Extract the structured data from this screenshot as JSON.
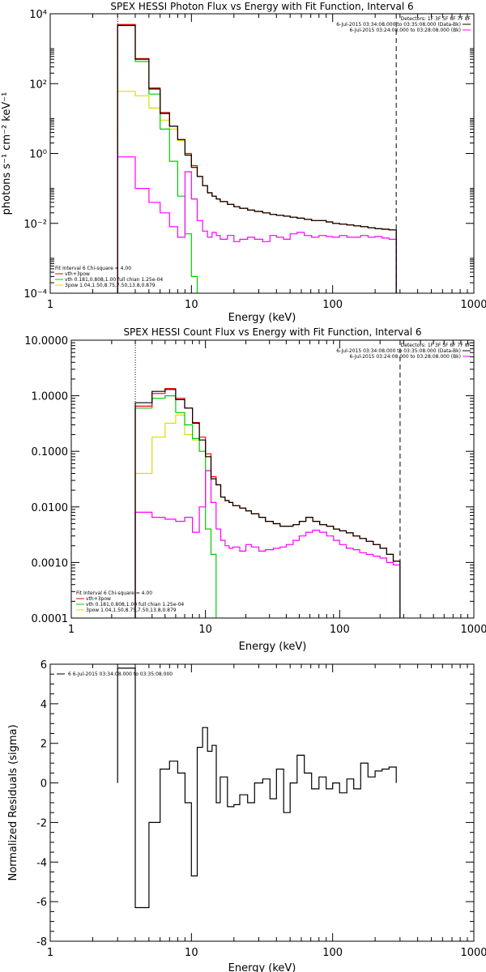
{
  "chart_data": [
    {
      "type": "line",
      "title": "SPEX HESSI Photon Flux vs Energy with Fit Function, Interval 6",
      "xlabel": "Energy (keV)",
      "ylabel": "photons s⁻¹ cm⁻² keV⁻¹",
      "xscale": "log",
      "yscale": "log",
      "xlim": [
        1,
        1000
      ],
      "ylim": [
        0.0001,
        10000
      ],
      "xticks": [
        1,
        10,
        100,
        1000
      ],
      "xtick_labels": [
        "1",
        "10",
        "100",
        "1000"
      ],
      "yticks": [
        0.0001,
        0.01,
        1,
        100,
        10000
      ],
      "ytick_labels": [
        "10⁻⁴",
        "10⁻²",
        "10⁰",
        "10²",
        "10⁴"
      ],
      "grid": false,
      "legend_top": {
        "position": "top-right",
        "header": "Detectors: 1F 3F 5F 6F 7F 8F",
        "entries": [
          {
            "text": "6-Jul-2015 03:34:08.000 to 03:35:08.000 (Data-Bk)",
            "color": "#000000"
          },
          {
            "text": "6-Jul-2015 03:24:08.000 to 03:28:08.000 (Bk)",
            "color": "#ff00ff"
          }
        ]
      },
      "legend_bottom": {
        "position": "bottom-left",
        "header": "Fit Interval 6   Chi-square = 4.00",
        "entries": [
          {
            "text": "vth+3pow",
            "color": "#ff0000"
          },
          {
            "text": "vth 0.181,0.808,1.00  full chian 1.25e-04",
            "color": "#00cc00"
          },
          {
            "text": "3pow 1.04,1.50,8.75,7.50,13.8,0.879",
            "color": "#dddd00"
          }
        ]
      },
      "energy_edges": [
        3,
        4,
        5,
        6,
        7,
        8,
        9,
        10,
        11,
        12,
        13,
        14,
        15,
        16,
        18,
        20,
        22,
        25,
        28,
        32,
        36,
        40,
        45,
        50,
        56,
        63,
        71,
        80,
        90,
        100,
        112,
        126,
        141,
        158,
        178,
        200,
        224,
        251,
        282
      ],
      "series": [
        {
          "name": "Data-Bk",
          "color": "#000000",
          "values": [
            4600,
            500,
            70,
            14,
            6,
            2.5,
            0.9,
            0.4,
            0.22,
            0.12,
            0.075,
            0.06,
            0.05,
            0.042,
            0.035,
            0.03,
            0.027,
            0.024,
            0.022,
            0.02,
            0.018,
            0.017,
            0.016,
            0.015,
            0.014,
            0.013,
            0.012,
            0.012,
            0.011,
            0.01,
            0.0095,
            0.009,
            0.0085,
            0.008,
            0.0075,
            0.007,
            0.0068,
            0.0065
          ]
        },
        {
          "name": "Bk",
          "color": "#ff00ff",
          "values": [
            0.8,
            0.1,
            0.04,
            0.02,
            0.008,
            0.004,
            0.3,
            0.05,
            0.012,
            0.006,
            0.004,
            0.0055,
            0.0045,
            0.0035,
            0.0045,
            0.003,
            0.0035,
            0.004,
            0.0035,
            0.003,
            0.0045,
            0.004,
            0.0035,
            0.005,
            0.0055,
            0.0045,
            0.004,
            0.0045,
            0.0042,
            0.004,
            0.0045,
            0.004,
            0.004,
            0.0045,
            0.004,
            0.0042,
            0.0038,
            0.0035
          ]
        },
        {
          "name": "vth+3pow",
          "color": "#ff0000",
          "values": [
            4900,
            520,
            75,
            15,
            6,
            2.5,
            1.0,
            0.45,
            0.22,
            0.12,
            0.075,
            0.06,
            0.05,
            0.042,
            0.035,
            0.03,
            0.027,
            0.024,
            0.022,
            0.02,
            0.018,
            0.017,
            0.016,
            0.015,
            0.014,
            0.013,
            0.012,
            0.012,
            0.011,
            0.01,
            0.0095,
            0.009,
            0.0085,
            0.008,
            0.0075,
            0.007,
            0.0068,
            0.0065
          ]
        },
        {
          "name": "vth",
          "color": "#00cc00",
          "values": [
            4900,
            430,
            50,
            5,
            0.6,
            0.06,
            0.005,
            0.0003,
            1e-05
          ]
        },
        {
          "name": "3pow",
          "color": "#dddd00",
          "values": [
            60,
            45,
            20,
            9,
            5,
            2.3,
            0.9,
            0.45,
            0.22,
            0.12,
            0.075,
            0.06,
            0.05,
            0.042,
            0.035,
            0.03,
            0.027,
            0.024,
            0.022,
            0.02,
            0.018,
            0.017,
            0.016,
            0.015,
            0.014,
            0.013,
            0.012,
            0.012,
            0.011,
            0.01,
            0.0095,
            0.009,
            0.0085,
            0.008,
            0.0075,
            0.007,
            0.0068,
            0.0065
          ]
        }
      ]
    },
    {
      "type": "line",
      "title": "SPEX HESSI Count Flux vs Energy with Fit Function, Interval 6",
      "xlabel": "Energy (keV)",
      "ylabel": "",
      "xscale": "log",
      "yscale": "log",
      "xlim": [
        1,
        1000
      ],
      "ylim": [
        0.0001,
        10
      ],
      "xticks": [
        1,
        10,
        100,
        1000
      ],
      "xtick_labels": [
        "1",
        "10",
        "100",
        "1000"
      ],
      "yticks": [
        0.0001,
        0.001,
        0.01,
        0.1,
        1,
        10
      ],
      "ytick_labels": [
        "0.0001",
        "0.0010",
        "0.0100",
        "0.1000",
        "1.0000",
        "10.0000"
      ],
      "grid": false,
      "legend_top": {
        "position": "top-right",
        "header": "Detectors: 1F 3F 5F 6F 7F 8F",
        "entries": [
          {
            "text": "6-Jul-2015 03:34:08.000 to 03:35:08.000 (Data-Bk)",
            "color": "#000000"
          },
          {
            "text": "6-Jul-2015 03:24:08.000 to 03:28:08.000 (Bk)",
            "color": "#ff00ff"
          }
        ]
      },
      "legend_bottom": {
        "position": "bottom-left",
        "header": "Fit Interval 6   Chi-square = 4.00",
        "entries": [
          {
            "text": "vth+3pow",
            "color": "#ff0000"
          },
          {
            "text": "vth 0.181,0.808,1.00  full chian 1.25e-04",
            "color": "#00cc00"
          },
          {
            "text": "3pow 1.04,1.50,8.75,7.50,13.8,0.879",
            "color": "#dddd00"
          }
        ]
      },
      "energy_edges": [
        3,
        4,
        5,
        6,
        7,
        8,
        9,
        10,
        11,
        12,
        13,
        14,
        15,
        16,
        18,
        20,
        22,
        25,
        28,
        32,
        36,
        40,
        45,
        50,
        56,
        63,
        71,
        80,
        90,
        100,
        112,
        126,
        141,
        158,
        178,
        200,
        224,
        251,
        282
      ],
      "series": [
        {
          "name": "Data-Bk",
          "color": "#000000",
          "values": [
            0.75,
            1.2,
            1.3,
            0.85,
            0.6,
            0.32,
            0.16,
            0.08,
            0.032,
            0.025,
            0.015,
            0.013,
            0.012,
            0.0105,
            0.0095,
            0.0085,
            0.0075,
            0.0065,
            0.0055,
            0.005,
            0.0045,
            0.0045,
            0.0048,
            0.0055,
            0.0065,
            0.0055,
            0.0048,
            0.0045,
            0.004,
            0.0037,
            0.0034,
            0.003,
            0.0027,
            0.0024,
            0.0021,
            0.0018,
            0.0014,
            0.00105
          ]
        },
        {
          "name": "Bk",
          "color": "#ff00ff",
          "values": [
            0.008,
            0.0065,
            0.006,
            0.0055,
            0.0065,
            0.0035,
            0.01,
            0.045,
            0.012,
            0.004,
            0.0025,
            0.002,
            0.0018,
            0.0019,
            0.0016,
            0.0021,
            0.0019,
            0.0016,
            0.0017,
            0.0018,
            0.0019,
            0.0021,
            0.0025,
            0.003,
            0.0035,
            0.0038,
            0.0035,
            0.003,
            0.0025,
            0.0021,
            0.0018,
            0.0017,
            0.0015,
            0.0014,
            0.0013,
            0.0012,
            0.001,
            0.0009
          ]
        },
        {
          "name": "vth+3pow",
          "color": "#ff0000",
          "values": [
            0.65,
            1.1,
            1.35,
            0.9,
            0.6,
            0.33,
            0.18,
            0.09,
            0.035,
            0.025,
            0.015,
            0.013,
            0.012,
            0.0105,
            0.0095,
            0.0085,
            0.0075,
            0.0065,
            0.0055,
            0.005,
            0.0045,
            0.0045,
            0.0048,
            0.0055,
            0.0065,
            0.0055,
            0.0048,
            0.0045,
            0.004,
            0.0037,
            0.0034,
            0.003,
            0.0027,
            0.0024,
            0.0021,
            0.0018,
            0.0014,
            0.00105
          ]
        },
        {
          "name": "vth",
          "color": "#00cc00",
          "values": [
            0.6,
            0.9,
            1.0,
            0.5,
            0.3,
            0.17,
            0.1,
            0.004,
            0.0014,
            1e-05
          ]
        },
        {
          "name": "3pow",
          "color": "#dddd00",
          "values": [
            0.04,
            0.18,
            0.32,
            0.45,
            0.2,
            0.16,
            0.1,
            0.08,
            0.035,
            0.025,
            0.015,
            0.013,
            0.012,
            0.0105,
            0.0095,
            0.0085,
            0.0075,
            0.0065,
            0.0055,
            0.005,
            0.0045,
            0.0045,
            0.0048,
            0.0055,
            0.0065,
            0.0055,
            0.0048,
            0.0045,
            0.004,
            0.0037,
            0.0034,
            0.003,
            0.0027,
            0.0024,
            0.0021,
            0.0018,
            0.0014,
            0.00105
          ]
        }
      ]
    },
    {
      "type": "line",
      "title": "",
      "xlabel": "Energy (keV)",
      "ylabel": "Normalized Residuals (sigma)",
      "xscale": "log",
      "yscale": "linear",
      "xlim": [
        1,
        1000
      ],
      "ylim": [
        -8,
        6
      ],
      "xticks": [
        1,
        10,
        100,
        1000
      ],
      "xtick_labels": [
        "1",
        "10",
        "100",
        "1000"
      ],
      "yticks": [
        -8,
        -6,
        -4,
        -2,
        0,
        2,
        4,
        6
      ],
      "ytick_labels": [
        "-8",
        "-6",
        "-4",
        "-2",
        "0",
        "2",
        "4",
        "6"
      ],
      "grid": false,
      "legend_top": {
        "position": "top-left",
        "header": "",
        "entries": [
          {
            "text": "6  6-Jul-2015 03:34:08.000 to 03:35:08.000",
            "color": "#000000"
          }
        ]
      },
      "energy_edges": [
        3,
        4,
        5,
        6,
        7,
        8,
        9,
        10,
        11,
        12,
        13,
        14,
        15,
        16,
        18,
        20,
        22,
        25,
        28,
        32,
        36,
        40,
        45,
        50,
        56,
        63,
        71,
        80,
        90,
        100,
        112,
        126,
        141,
        158,
        178,
        200,
        224,
        251,
        282
      ],
      "series": [
        {
          "name": "6",
          "color": "#000000",
          "values": [
            5.8,
            -6.3,
            -2.0,
            0.7,
            1.1,
            0.5,
            -1.0,
            -4.7,
            1.8,
            2.8,
            1.6,
            1.9,
            -1.0,
            0.3,
            -1.2,
            -1.1,
            -0.6,
            -1.0,
            0.0,
            0.2,
            -0.8,
            0.7,
            -1.5,
            0.0,
            1.4,
            0.5,
            -0.3,
            0.3,
            -0.3,
            0.0,
            -0.5,
            0.2,
            -0.3,
            1.0,
            0.3,
            0.6,
            0.7,
            0.8
          ]
        }
      ]
    }
  ]
}
